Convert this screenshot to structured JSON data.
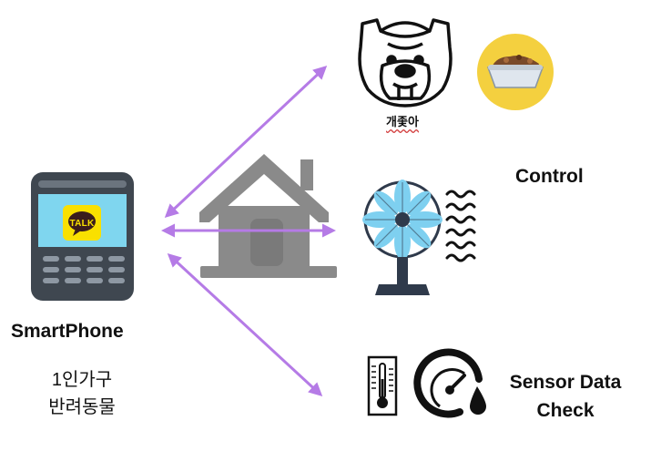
{
  "labels": {
    "dog_caption": "개좇아",
    "control": "Control",
    "smartphone": "SmartPhone",
    "household_line1": "1인가구",
    "household_line2": "반려동물",
    "sensor_line1": "Sensor Data",
    "sensor_line2": "Check",
    "kakao_badge": "TALK"
  },
  "icons": {
    "phone": "smartphone-icon",
    "app": "kakaotalk-icon",
    "house": "house-icon",
    "dog": "bulldog-icon",
    "bowl": "pet-food-bowl-icon",
    "fan": "electric-fan-icon",
    "wind": "wind-waves-icon",
    "thermometer": "thermometer-icon",
    "gauge": "humidity-gauge-icon"
  },
  "colors": {
    "arrow": "#b57be6",
    "house": "#8a8a8a",
    "phone_body": "#3f4750",
    "phone_screen": "#7fd6ef",
    "kakao_yellow": "#f9e000",
    "fan_blade": "#7ed0f0",
    "fan_dark": "#2f3a4b",
    "bowl_circle": "#f4d03f"
  }
}
